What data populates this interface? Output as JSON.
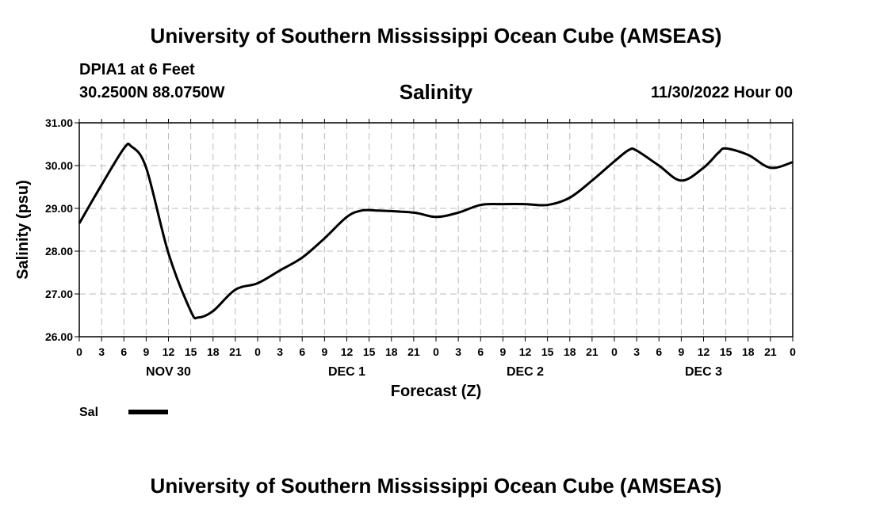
{
  "header": {
    "title": "University of Southern Mississippi Ocean Cube (AMSEAS)",
    "station": "DPIA1 at 6 Feet",
    "coords": "30.2500N  88.0750W",
    "variable": "Salinity",
    "run_time": "11/30/2022 Hour 00"
  },
  "footer": {
    "title": "University of Southern Mississippi Ocean Cube (AMSEAS)"
  },
  "colors": {
    "line": "#000000",
    "grid": "#bbbbbb"
  },
  "chart_data": {
    "type": "line",
    "title": "Salinity",
    "xlabel": "Forecast (Z)",
    "ylabel": "Salinity (psu)",
    "ylim": [
      26.0,
      31.0
    ],
    "yticks": [
      "26.00",
      "27.00",
      "28.00",
      "29.00",
      "30.00",
      "31.00"
    ],
    "xlim": [
      0,
      96
    ],
    "xticks": [
      "0",
      "3",
      "6",
      "9",
      "12",
      "15",
      "18",
      "21",
      "0",
      "3",
      "6",
      "9",
      "12",
      "15",
      "18",
      "21",
      "0",
      "3",
      "6",
      "9",
      "12",
      "15",
      "18",
      "21",
      "0",
      "3",
      "6",
      "9",
      "12",
      "15",
      "18",
      "21",
      "0"
    ],
    "day_labels": [
      {
        "label": "NOV 30",
        "hour": 12
      },
      {
        "label": "DEC 1",
        "hour": 36
      },
      {
        "label": "DEC 2",
        "hour": 60
      },
      {
        "label": "DEC 3",
        "hour": 84
      }
    ],
    "grid": true,
    "legend": "bottom-left",
    "series": [
      {
        "name": "Sal",
        "x": [
          0,
          3,
          6,
          7,
          9,
          12,
          15,
          16,
          18,
          21,
          24,
          27,
          30,
          33,
          36,
          38,
          40,
          45,
          48,
          51,
          54,
          57,
          60,
          63,
          66,
          69,
          72,
          74,
          75,
          78,
          81,
          84,
          86,
          87,
          90,
          93,
          96
        ],
        "y": [
          28.65,
          29.55,
          30.4,
          30.45,
          29.95,
          27.95,
          26.6,
          26.45,
          26.6,
          27.1,
          27.25,
          27.55,
          27.85,
          28.3,
          28.8,
          28.95,
          28.95,
          28.9,
          28.8,
          28.9,
          29.08,
          29.1,
          29.1,
          29.08,
          29.25,
          29.65,
          30.1,
          30.37,
          30.35,
          30.0,
          29.65,
          29.95,
          30.3,
          30.4,
          30.25,
          29.95,
          30.08
        ]
      }
    ]
  }
}
